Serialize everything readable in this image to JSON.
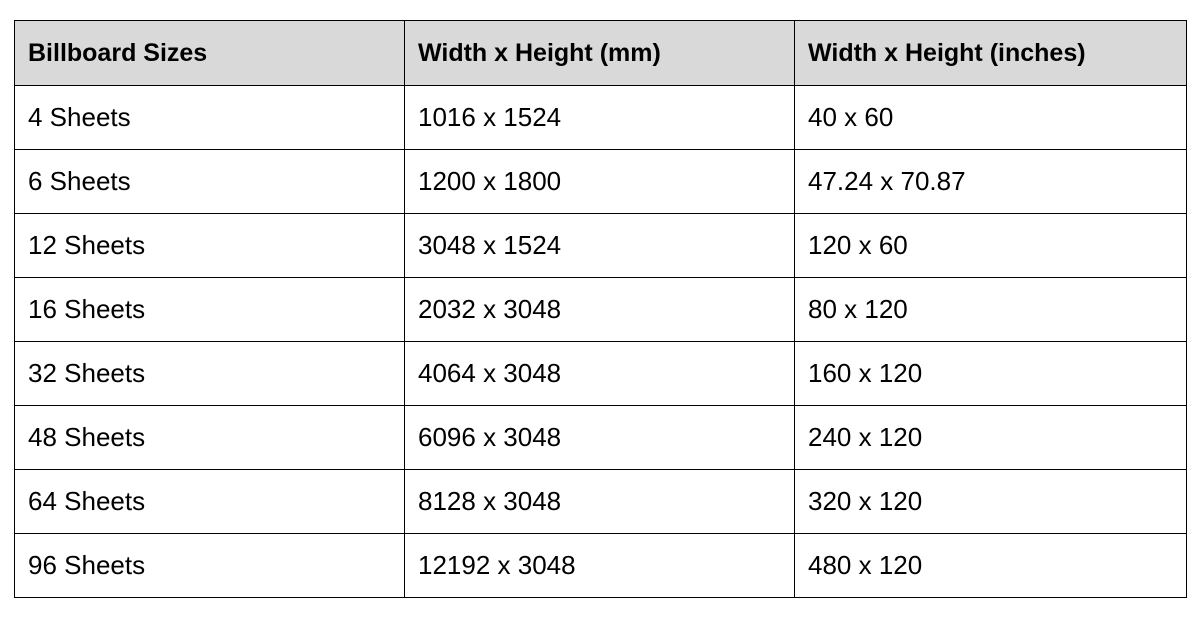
{
  "table": {
    "headers": [
      "Billboard Sizes",
      "Width x Height (mm)",
      "Width x Height (inches)"
    ],
    "rows": [
      [
        "4 Sheets",
        "1016 x 1524",
        "40 x 60"
      ],
      [
        "6 Sheets",
        "1200 x 1800",
        "47.24 x 70.87"
      ],
      [
        "12 Sheets",
        "3048 x 1524",
        "120 x 60"
      ],
      [
        "16 Sheets",
        "2032 x 3048",
        "80 x 120"
      ],
      [
        "32 Sheets",
        "4064 x 3048",
        "160 x 120"
      ],
      [
        "48 Sheets",
        "6096 x 3048",
        "240 x 120"
      ],
      [
        "64 Sheets",
        "8128 x 3048",
        "320 x 120"
      ],
      [
        "96 Sheets",
        "12192 x 3048",
        "480 x 120"
      ]
    ],
    "colors": {
      "header_background": "#d9d9d9",
      "border": "#000000",
      "text": "#000000"
    }
  }
}
